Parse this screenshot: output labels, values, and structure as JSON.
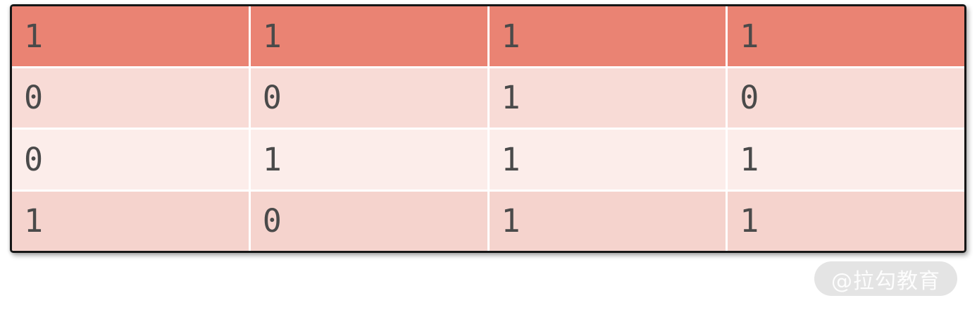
{
  "chart_data": {
    "type": "table",
    "rows": [
      [
        "1",
        "1",
        "1",
        "1"
      ],
      [
        "0",
        "0",
        "1",
        "0"
      ],
      [
        "0",
        "1",
        "1",
        "1"
      ],
      [
        "1",
        "0",
        "1",
        "1"
      ]
    ],
    "header_row_index": 0,
    "num_columns": 4,
    "num_rows": 4,
    "grid": "white dividers between cells",
    "legend_position": "none"
  },
  "table": {
    "header": [
      "1",
      "1",
      "1",
      "1"
    ],
    "body": [
      [
        "0",
        "0",
        "1",
        "0"
      ],
      [
        "0",
        "1",
        "1",
        "1"
      ],
      [
        "1",
        "0",
        "1",
        "1"
      ]
    ]
  },
  "watermark": {
    "text": "@拉勾教育"
  },
  "colors": {
    "page_bg": "#ffffff",
    "header_bg": "#ea8373",
    "row1_bg": "#f8dbd6",
    "row2_bg": "#fcedea",
    "row3_bg": "#f5d3cd",
    "text_color": "#4a4a4a",
    "border_color": "#161616",
    "divider": "#ffffff",
    "watermark_bg": "#e4e4e4",
    "watermark_text": "#fdfdfd"
  }
}
